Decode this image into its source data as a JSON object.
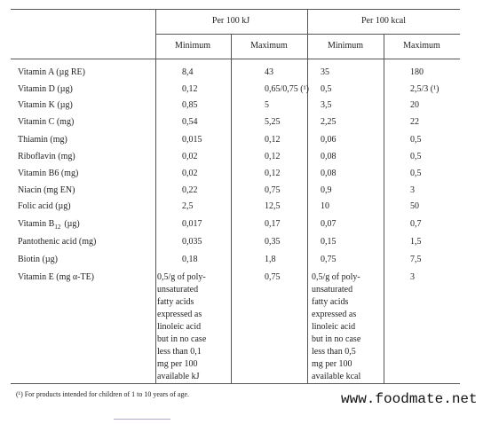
{
  "table": {
    "header": [
      "Per 100 kJ",
      "Per 100 kcal"
    ],
    "subheader": [
      "Minimum",
      "Maximum",
      "Minimum",
      "Maximum"
    ],
    "rows": [
      [
        "Vitamin A (µg RE)",
        "8,4",
        "43",
        "35",
        "180"
      ],
      [
        "Vitamin D (µg)",
        "0,12",
        "0,65/0,75 (¹)",
        "0,5",
        "2,5/3 (¹)"
      ],
      [
        "Vitamin K (µg)",
        "0,85",
        "5",
        "3,5",
        "20"
      ],
      [
        "Vitamin C (mg)",
        "0,54",
        "5,25",
        "2,25",
        "22"
      ],
      [
        "Thiamin (mg)",
        "0,015",
        "0,12",
        "0,06",
        "0,5"
      ],
      [
        "Riboflavin (mg)",
        "0,02",
        "0,12",
        "0,08",
        "0,5"
      ],
      [
        "Vitamin B6 (mg)",
        "0,02",
        "0,12",
        "0,08",
        "0,5"
      ],
      [
        "Niacin (mg EN)",
        "0,22",
        "0,75",
        "0,9",
        "3"
      ],
      [
        "Folic acid (µg)",
        "2,5",
        "12,5",
        "10",
        "50"
      ],
      [
        [
          "Vitamin B",
          "12",
          "(µg)"
        ],
        "0,017",
        "0,17",
        "0,07",
        "0,7"
      ],
      [
        "Pantothenic acid (mg)",
        "0,035",
        "0,35",
        "0,15",
        "1,5"
      ],
      [
        "Biotin (µg)",
        "0,18",
        "1,8",
        "0,75",
        "7,5"
      ],
      [
        "Vitamin E (mg α-TE)",
        [
          "0,5/g of poly-",
          "unsaturated",
          "fatty acids",
          "expressed as",
          "linoleic acid",
          "but in no case",
          "less than 0,1",
          "mg per 100",
          "available kJ"
        ],
        "0,75",
        [
          "0,5/g of poly-",
          "unsaturated",
          "fatty acids",
          "expressed as",
          "linoleic acid",
          "but in no case",
          "less than 0,5",
          "mg per 100",
          "available kcal"
        ],
        "3"
      ]
    ]
  },
  "footnote": "(¹) For products intended for children of 1 to 10 years of age.",
  "watermark": "www.foodmate.net"
}
